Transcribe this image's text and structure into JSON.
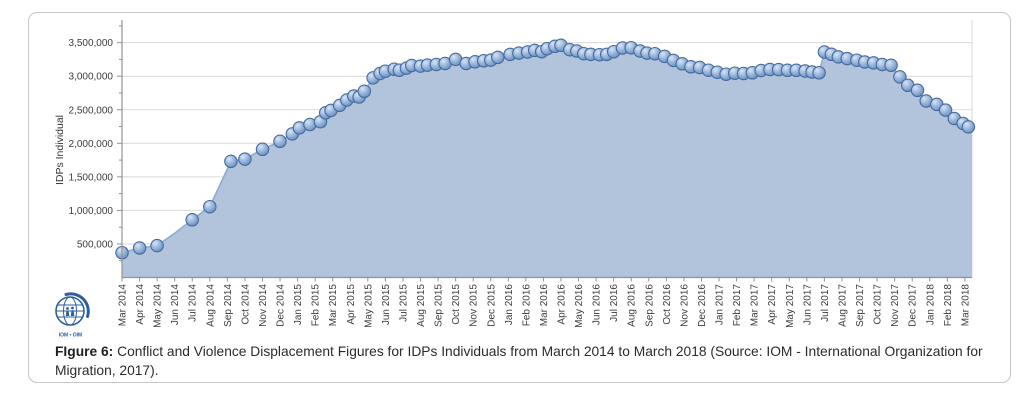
{
  "figure": {
    "caption_label": "FIgure 6:",
    "caption_text": " Conflict and Violence Displacement Figures for IDPs Individuals from March 2014 to March 2018 (Source: IOM - International Organization for Migration, 2017)."
  },
  "logo": {
    "text": "IOM • OIM",
    "color": "#2d5f9b"
  },
  "chart_data": {
    "type": "area",
    "title": "",
    "xlabel": "",
    "ylabel": "IDPs Individual",
    "ylim": [
      0,
      3750000
    ],
    "ytick_step": 500000,
    "ytick_minor_step": 250000,
    "grid": true,
    "legend": "none",
    "ytick_labels": [
      "500,000",
      "1,000,000",
      "1,500,000",
      "2,000,000",
      "2,500,000",
      "3,000,000",
      "3,500,000"
    ],
    "x_categories": [
      "Mar 2014",
      "Apr 2014",
      "May 2014",
      "Jun 2014",
      "Jul 2014",
      "Aug 2014",
      "Sep 2014",
      "Oct 2014",
      "Nov 2014",
      "Dec 2014",
      "Jan 2015",
      "Feb 2015",
      "Mar 2015",
      "Apr 2015",
      "May 2015",
      "Jun 2015",
      "Jul 2015",
      "Aug 2015",
      "Sep 2015",
      "Oct 2015",
      "Nov 2015",
      "Dec 2015",
      "Jan 2016",
      "Feb 2016",
      "Mar 2016",
      "Apr 2016",
      "May 2016",
      "Jun 2016",
      "Jul 2016",
      "Aug 2016",
      "Sep 2016",
      "Oct 2016",
      "Nov 2016",
      "Dec 2016",
      "Jan 2017",
      "Feb 2017",
      "Mar 2017",
      "Apr 2017",
      "May 2017",
      "Jun 2017",
      "Jul 2017",
      "Aug 2017",
      "Sep 2017",
      "Oct 2017",
      "Nov 2017",
      "Dec 2017",
      "Jan 2018",
      "Feb 2018",
      "Mar 2018"
    ],
    "x_unit": "months since Mar 2014 (fractional = bi-weekly reporting rounds)",
    "series": [
      {
        "name": "IDPs Individuals",
        "points": [
          [
            0,
            370000
          ],
          [
            1,
            440000
          ],
          [
            2,
            475000
          ],
          [
            3,
            660000,
            0
          ],
          [
            4,
            860000
          ],
          [
            5,
            1055000
          ],
          [
            6.2,
            1730000
          ],
          [
            7,
            1765000
          ],
          [
            8,
            1910000
          ],
          [
            9,
            2030000
          ],
          [
            9.7,
            2140000
          ],
          [
            10.1,
            2230000
          ],
          [
            10.7,
            2280000
          ],
          [
            11.3,
            2320000
          ],
          [
            11.6,
            2455000
          ],
          [
            11.9,
            2490000
          ],
          [
            12.4,
            2565000
          ],
          [
            12.8,
            2645000
          ],
          [
            13.2,
            2705000
          ],
          [
            13.5,
            2690000
          ],
          [
            13.8,
            2775000
          ],
          [
            14.3,
            2975000
          ],
          [
            14.7,
            3040000
          ],
          [
            15,
            3075000
          ],
          [
            15.5,
            3105000
          ],
          [
            15.8,
            3090000
          ],
          [
            16.2,
            3120000
          ],
          [
            16.5,
            3160000
          ],
          [
            17,
            3150000
          ],
          [
            17.4,
            3165000
          ],
          [
            17.9,
            3175000
          ],
          [
            18.4,
            3190000
          ],
          [
            19,
            3250000
          ],
          [
            19.6,
            3190000
          ],
          [
            20.1,
            3215000
          ],
          [
            20.6,
            3230000
          ],
          [
            21,
            3240000
          ],
          [
            21.4,
            3280000
          ],
          [
            22.1,
            3325000
          ],
          [
            22.6,
            3345000
          ],
          [
            23.1,
            3360000
          ],
          [
            23.5,
            3385000
          ],
          [
            23.9,
            3365000
          ],
          [
            24.2,
            3410000
          ],
          [
            24.65,
            3445000
          ],
          [
            25,
            3460000
          ],
          [
            25.5,
            3395000
          ],
          [
            25.9,
            3375000
          ],
          [
            26.3,
            3335000
          ],
          [
            26.7,
            3325000
          ],
          [
            27.2,
            3320000
          ],
          [
            27.6,
            3325000
          ],
          [
            28,
            3365000
          ],
          [
            28.5,
            3420000
          ],
          [
            29,
            3425000
          ],
          [
            29.5,
            3375000
          ],
          [
            29.9,
            3345000
          ],
          [
            30.35,
            3335000
          ],
          [
            30.9,
            3295000
          ],
          [
            31.4,
            3235000
          ],
          [
            31.9,
            3185000
          ],
          [
            32.4,
            3140000
          ],
          [
            32.9,
            3130000
          ],
          [
            33.4,
            3090000
          ],
          [
            33.9,
            3060000
          ],
          [
            34.4,
            3030000
          ],
          [
            34.9,
            3045000
          ],
          [
            35.4,
            3040000
          ],
          [
            35.9,
            3050000
          ],
          [
            36.4,
            3085000
          ],
          [
            36.9,
            3100000
          ],
          [
            37.4,
            3098000
          ],
          [
            37.9,
            3088000
          ],
          [
            38.4,
            3088000
          ],
          [
            38.9,
            3078000
          ],
          [
            39.3,
            3062000
          ],
          [
            39.7,
            3050000
          ],
          [
            40,
            3360000
          ],
          [
            40.4,
            3327000
          ],
          [
            40.8,
            3287000
          ],
          [
            41.3,
            3263000
          ],
          [
            41.85,
            3238000
          ],
          [
            42.3,
            3212000
          ],
          [
            42.8,
            3198000
          ],
          [
            43.3,
            3174000
          ],
          [
            43.8,
            3162000
          ],
          [
            44.3,
            2990000
          ],
          [
            44.75,
            2865000
          ],
          [
            45.3,
            2790000
          ],
          [
            45.8,
            2630000
          ],
          [
            46.4,
            2580000
          ],
          [
            46.9,
            2495000
          ],
          [
            47.4,
            2370000
          ],
          [
            47.9,
            2295000
          ],
          [
            48.2,
            2245000
          ]
        ]
      }
    ],
    "colors": {
      "area_fill": "#b2c3dc",
      "edge_line": "#8fabd1",
      "marker_hi": "#d9e4f2",
      "marker_mid": "#9dbade",
      "marker_lo": "#6289ba",
      "marker_stroke": "#456a9e",
      "grid": "#d9d9d9",
      "axis": "#929292",
      "tick_text": "#3c3c3c"
    }
  }
}
